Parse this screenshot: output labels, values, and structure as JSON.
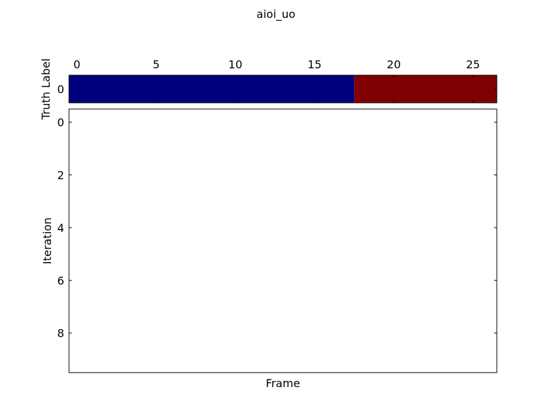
{
  "chart_data": [
    {
      "type": "heatmap",
      "title": "aioi_uo",
      "ylabel": "Truth Label",
      "x_ticks": [
        0,
        5,
        10,
        15,
        20,
        25
      ],
      "y_ticks": [
        0
      ],
      "xlim": [
        -0.5,
        26.5
      ],
      "ylim": [
        0.5,
        -0.5
      ],
      "x_tick_position": "top",
      "cells": [
        {
          "x_start": -0.5,
          "x_end": 17.5,
          "row": 0,
          "color": "#00007f"
        },
        {
          "x_start": 17.5,
          "x_end": 26.5,
          "row": 0,
          "color": "#7f0000"
        }
      ]
    },
    {
      "type": "heatmap",
      "xlabel": "Frame",
      "ylabel": "Iteration",
      "y_ticks": [
        0,
        2,
        4,
        6,
        8
      ],
      "ylim": [
        9.5,
        -0.5
      ],
      "cells": []
    }
  ]
}
